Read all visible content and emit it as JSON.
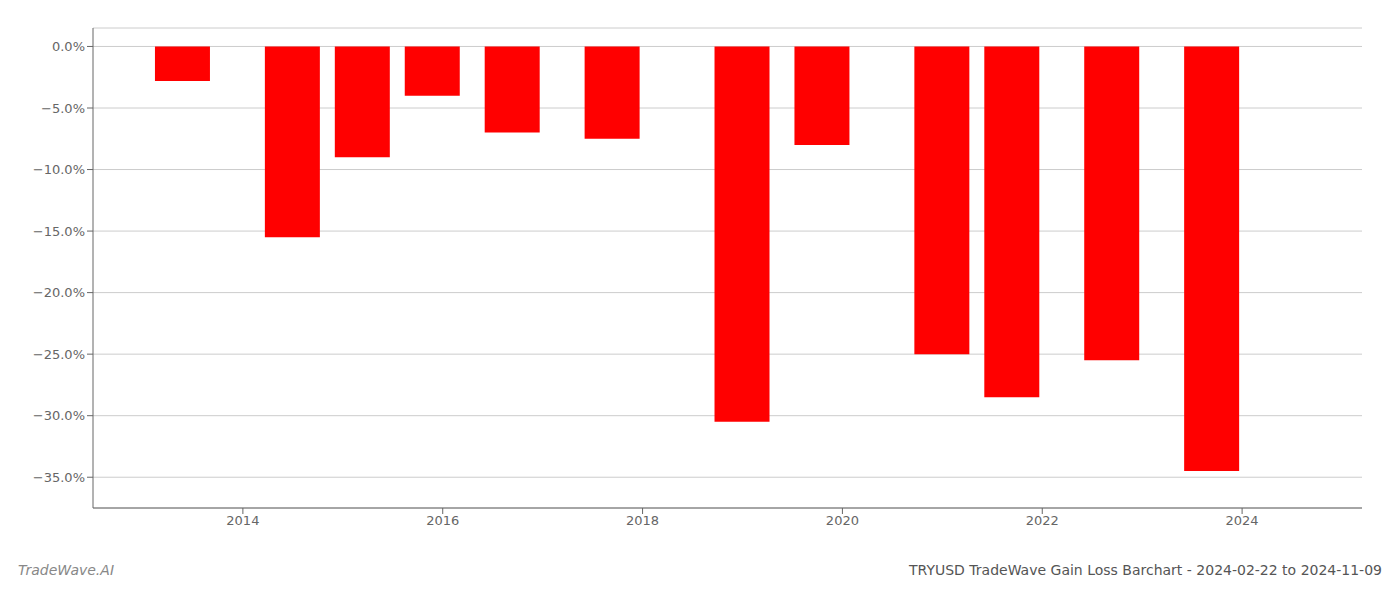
{
  "chart_data": {
    "type": "bar",
    "title": "TRYUSD TradeWave Gain Loss Barchart - 2024-02-22 to 2024-11-09",
    "annotations": [
      "TradeWave.AI"
    ],
    "x": [
      2013.4,
      2014.5,
      2015.2,
      2015.9,
      2016.7,
      2017.7,
      2019.0,
      2019.8,
      2021.0,
      2021.7,
      2022.7,
      2023.7
    ],
    "values": [
      -2.8,
      -15.5,
      -9.0,
      -4.0,
      -7.0,
      -7.5,
      -30.5,
      -8.0,
      -25.0,
      -28.5,
      -25.5,
      -34.5
    ],
    "color": "#ff0000",
    "xlim": [
      2012.5,
      2025.2
    ],
    "xticks": [
      2014,
      2016,
      2018,
      2020,
      2022,
      2024
    ],
    "ylim": [
      -37.5,
      1.5
    ],
    "yticks": [
      {
        "value": 0.0,
        "label": "0.0%"
      },
      {
        "value": -5.0,
        "label": "−5.0%"
      },
      {
        "value": -10.0,
        "label": "−10.0%"
      },
      {
        "value": -15.0,
        "label": "−15.0%"
      },
      {
        "value": -20.0,
        "label": "−20.0%"
      },
      {
        "value": -25.0,
        "label": "−25.0%"
      },
      {
        "value": -30.0,
        "label": "−30.0%"
      },
      {
        "value": -35.0,
        "label": "−35.0%"
      }
    ],
    "grid": true
  }
}
